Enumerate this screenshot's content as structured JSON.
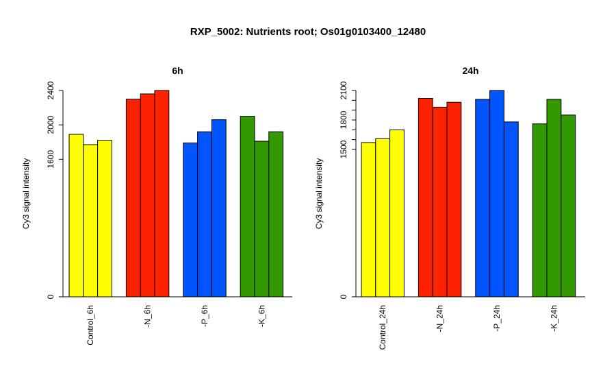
{
  "title": "RXP_5002: Nutrients root; Os01g0103400_12480",
  "colors": {
    "control": "#ffff00",
    "N": "#ff2200",
    "P": "#0055ff",
    "K": "#339900"
  },
  "chart_data": [
    {
      "type": "bar",
      "title": "6h",
      "ylabel": "Cy3 signal intensity",
      "ylim": [
        0,
        2400
      ],
      "yticks": [
        "0",
        "1600",
        "2000",
        "2400"
      ],
      "yticks_values": [
        0,
        1600,
        2000,
        2400
      ],
      "categories": [
        "Control_6h",
        "-N_6h",
        "-P_6h",
        "-K_6h"
      ],
      "groups": [
        {
          "label": "Control_6h",
          "color": "#ffff00",
          "values": [
            1890,
            1770,
            1820
          ]
        },
        {
          "label": "-N_6h",
          "color": "#ff2200",
          "values": [
            2300,
            2360,
            2400
          ]
        },
        {
          "label": "-P_6h",
          "color": "#0055ff",
          "values": [
            1790,
            1920,
            2060
          ]
        },
        {
          "label": "-K_6h",
          "color": "#339900",
          "values": [
            2100,
            1810,
            1920
          ]
        }
      ]
    },
    {
      "type": "bar",
      "title": "24h",
      "ylabel": "Cy3 signal intensity",
      "ylim": [
        0,
        2100
      ],
      "yticks": [
        "0",
        "1500",
        "1800",
        "2100"
      ],
      "yticks_values": [
        0,
        1500,
        1600,
        1700,
        1800,
        1900,
        2000,
        2100
      ],
      "ytick_labels_shown": [
        0,
        1500,
        1800,
        2100
      ],
      "categories": [
        "Control_24h",
        "-N_24h",
        "-P_24h",
        "-K_24h"
      ],
      "groups": [
        {
          "label": "Control_24h",
          "color": "#ffff00",
          "values": [
            1570,
            1610,
            1700
          ]
        },
        {
          "label": "-N_24h",
          "color": "#ff2200",
          "values": [
            2020,
            1930,
            1980
          ]
        },
        {
          "label": "-P_24h",
          "color": "#0055ff",
          "values": [
            2010,
            2100,
            1780
          ]
        },
        {
          "label": "-K_24h",
          "color": "#339900",
          "values": [
            1760,
            2010,
            1850
          ]
        }
      ]
    }
  ]
}
